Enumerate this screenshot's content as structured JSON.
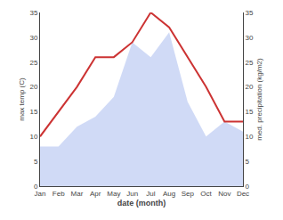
{
  "chart_data": {
    "type": "line",
    "xlabel": "date (month)",
    "ylabel": "max temp (C)",
    "y2label": "med. precipitation (kg/m2)",
    "categories": [
      "Jan",
      "Feb",
      "Mar",
      "Apr",
      "May",
      "Jun",
      "Jul",
      "Aug",
      "Sep",
      "Oct",
      "Nov",
      "Dec"
    ],
    "series": [
      {
        "type": "area",
        "axis": "y2",
        "color": "#aabbee",
        "values": [
          8,
          8,
          12,
          14,
          18,
          29,
          26,
          31,
          17,
          10,
          13,
          11
        ]
      },
      {
        "type": "line",
        "color": "#cc3333",
        "values": [
          10,
          15,
          20,
          26,
          26,
          29,
          35,
          32,
          26,
          20,
          13,
          13
        ]
      }
    ],
    "ylim": [
      0,
      35
    ],
    "yticks": [
      0,
      5,
      10,
      15,
      20,
      25,
      30,
      35
    ],
    "y2lim": [
      0,
      35
    ],
    "y2ticks": [
      0,
      5,
      10,
      15,
      20,
      25,
      30,
      35
    ],
    "grid": false
  }
}
